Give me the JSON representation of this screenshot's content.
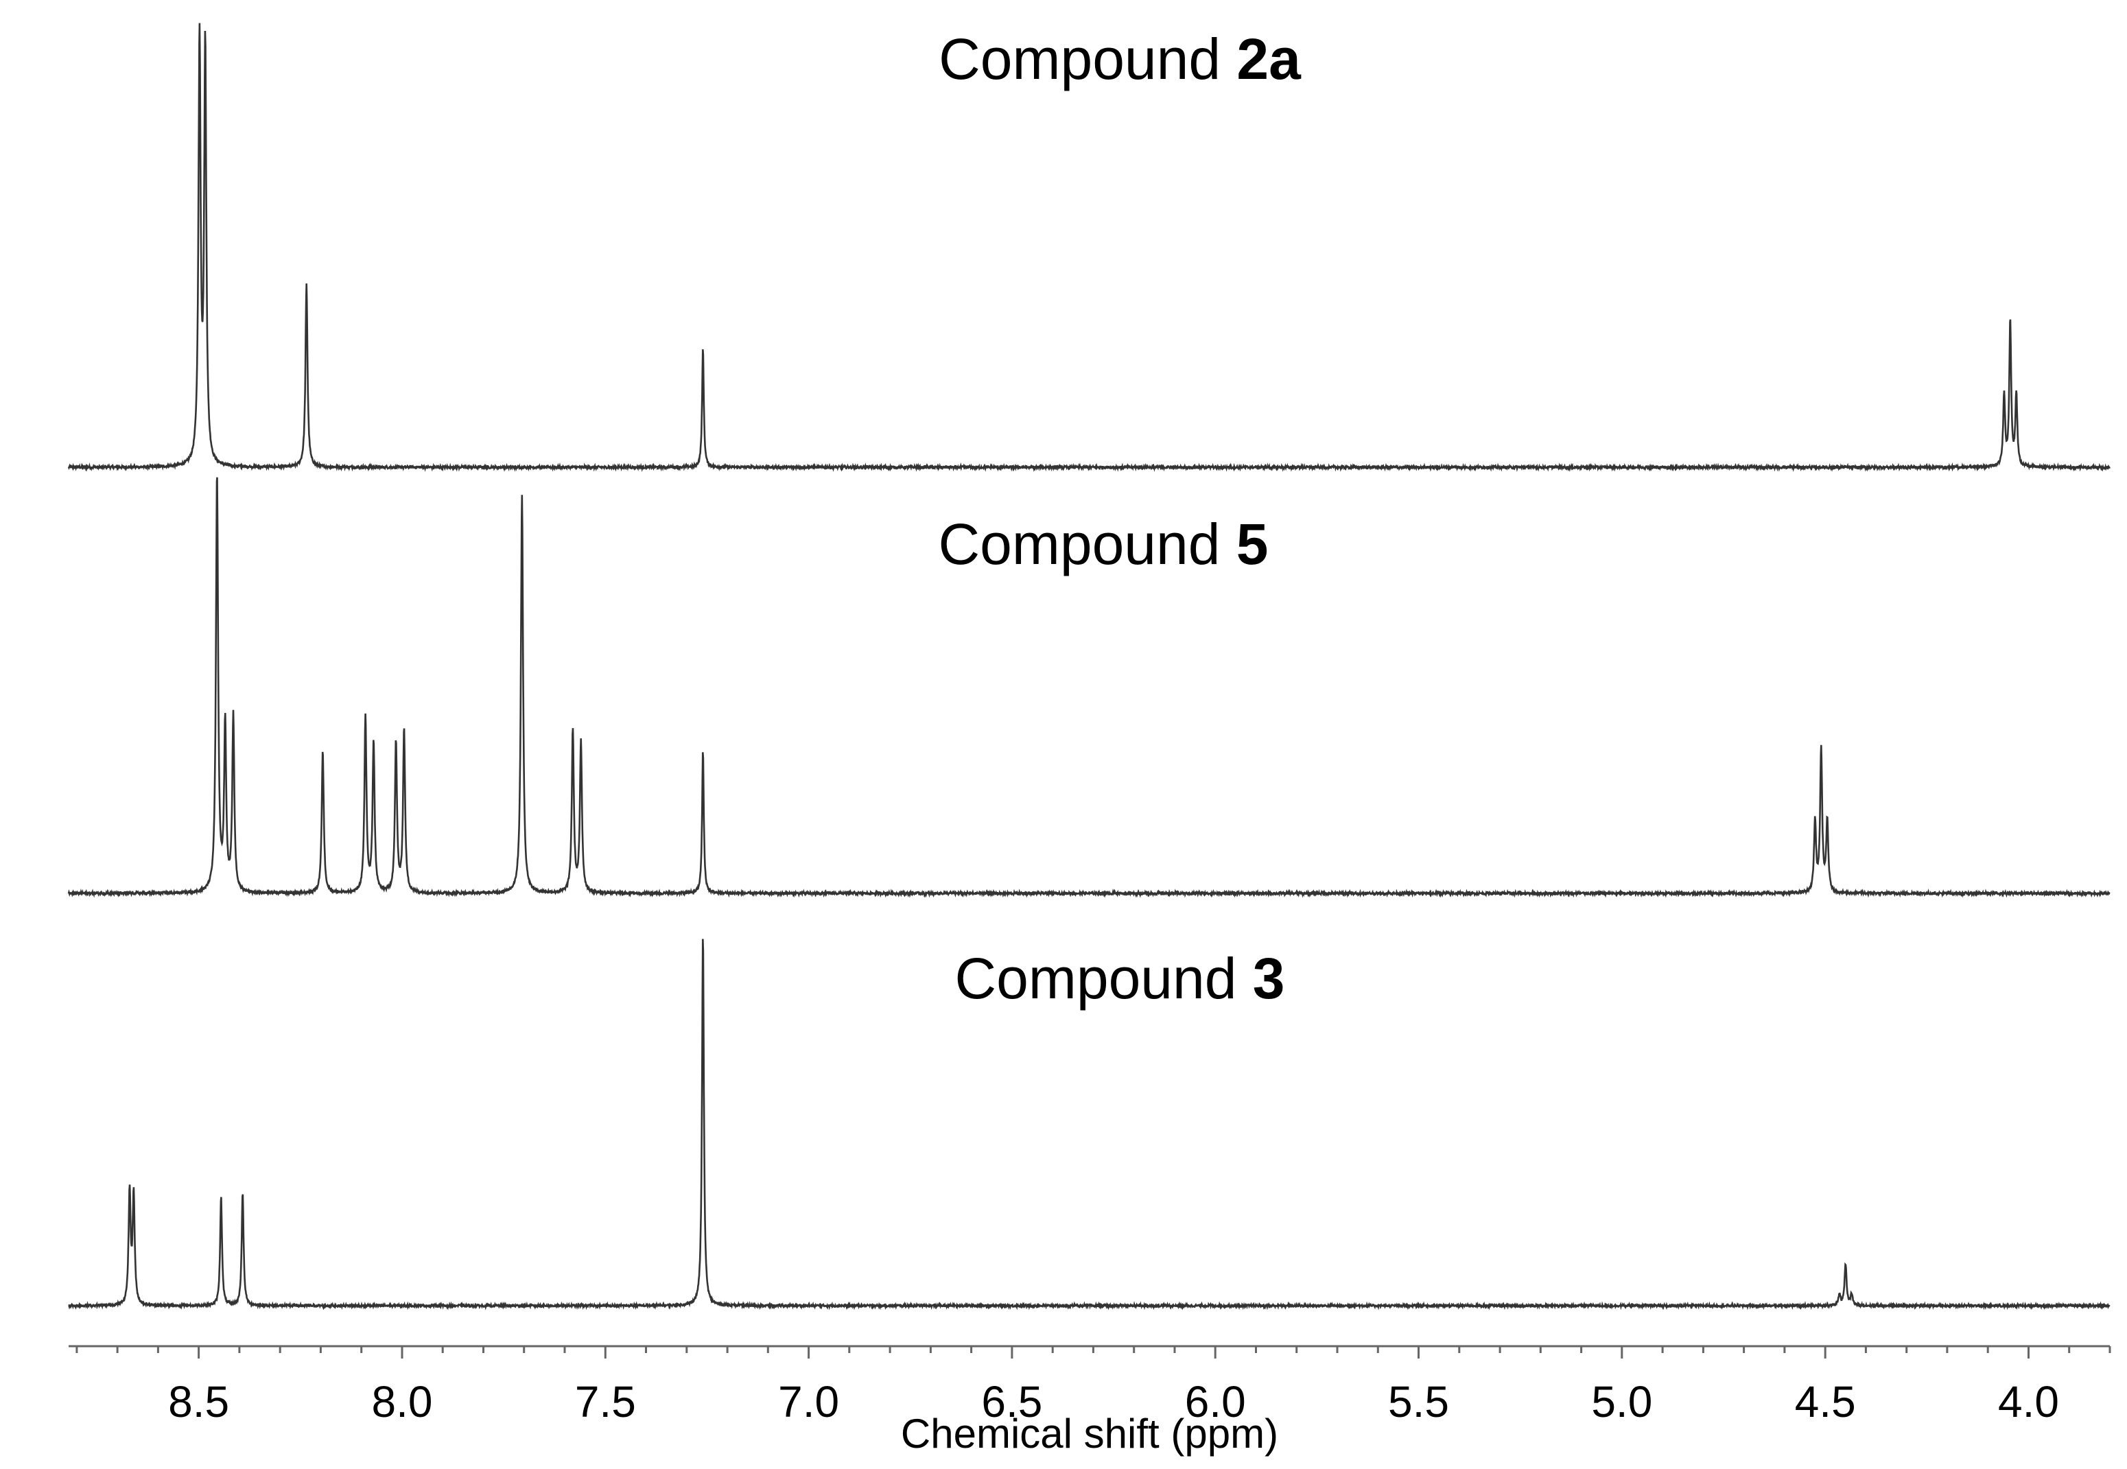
{
  "chart_data": {
    "type": "line",
    "title": "",
    "xlabel": "Chemical shift (ppm)",
    "ylabel": "",
    "xlim": [
      8.82,
      3.8
    ],
    "x_reversed": true,
    "x_ticks": [
      "8.5",
      "8.0",
      "7.5",
      "7.0",
      "6.5",
      "6.0",
      "5.5",
      "5.0",
      "4.5",
      "4.0"
    ],
    "x_tick_values": [
      8.5,
      8.0,
      7.5,
      7.0,
      6.5,
      6.0,
      5.5,
      5.0,
      4.5,
      4.0
    ],
    "grid": false,
    "legend": "none",
    "line_color": "#333333",
    "series": [
      {
        "title_prefix": "Compound ",
        "title_bold": "2a",
        "relative_intensity_scale": 1.0,
        "peaks": [
          {
            "ppm": 8.498,
            "height": 1.0,
            "width": 0.0032
          },
          {
            "ppm": 8.484,
            "height": 0.98,
            "width": 0.0032
          },
          {
            "ppm": 8.235,
            "height": 0.43,
            "width": 0.003
          },
          {
            "ppm": 7.26,
            "height": 0.28,
            "width": 0.0025
          },
          {
            "ppm": 4.06,
            "height": 0.17,
            "width": 0.0028
          },
          {
            "ppm": 4.045,
            "height": 0.34,
            "width": 0.0028
          },
          {
            "ppm": 4.03,
            "height": 0.17,
            "width": 0.0028
          }
        ]
      },
      {
        "title_prefix": "Compound ",
        "title_bold": "5",
        "relative_intensity_scale": 1.0,
        "peaks": [
          {
            "ppm": 8.455,
            "height": 1.0,
            "width": 0.0032
          },
          {
            "ppm": 8.435,
            "height": 0.4,
            "width": 0.003
          },
          {
            "ppm": 8.415,
            "height": 0.42,
            "width": 0.003
          },
          {
            "ppm": 8.195,
            "height": 0.34,
            "width": 0.003
          },
          {
            "ppm": 8.09,
            "height": 0.42,
            "width": 0.003
          },
          {
            "ppm": 8.07,
            "height": 0.36,
            "width": 0.003
          },
          {
            "ppm": 8.015,
            "height": 0.36,
            "width": 0.003
          },
          {
            "ppm": 7.995,
            "height": 0.39,
            "width": 0.003
          },
          {
            "ppm": 7.705,
            "height": 0.95,
            "width": 0.0032
          },
          {
            "ppm": 7.58,
            "height": 0.39,
            "width": 0.003
          },
          {
            "ppm": 7.56,
            "height": 0.36,
            "width": 0.003
          },
          {
            "ppm": 7.26,
            "height": 0.34,
            "width": 0.0025
          },
          {
            "ppm": 4.525,
            "height": 0.17,
            "width": 0.003
          },
          {
            "ppm": 4.51,
            "height": 0.34,
            "width": 0.003
          },
          {
            "ppm": 4.495,
            "height": 0.17,
            "width": 0.003
          }
        ]
      },
      {
        "title_prefix": "Compound ",
        "title_bold": "3",
        "relative_intensity_scale": 1.0,
        "peaks": [
          {
            "ppm": 8.67,
            "height": 0.3,
            "width": 0.003
          },
          {
            "ppm": 8.66,
            "height": 0.29,
            "width": 0.003
          },
          {
            "ppm": 8.445,
            "height": 0.29,
            "width": 0.0028
          },
          {
            "ppm": 8.392,
            "height": 0.3,
            "width": 0.0028
          },
          {
            "ppm": 7.26,
            "height": 0.98,
            "width": 0.0028
          },
          {
            "ppm": 4.465,
            "height": 0.03,
            "width": 0.003
          },
          {
            "ppm": 4.45,
            "height": 0.11,
            "width": 0.003
          },
          {
            "ppm": 4.435,
            "height": 0.03,
            "width": 0.003
          }
        ]
      }
    ]
  }
}
